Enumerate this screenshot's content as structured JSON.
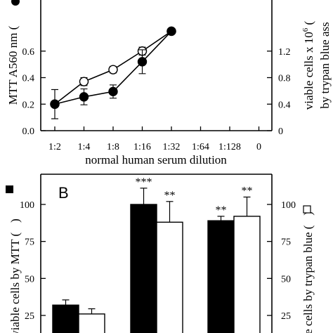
{
  "chart_data": [
    {
      "type": "line",
      "panel_label": "",
      "x_categories": [
        "1:2",
        "1:4",
        "1:8",
        "1:16",
        "1:32",
        "1:64",
        "1:128",
        "0"
      ],
      "xlabel": "normal human serum dilution",
      "ylabel_left": "MTT A560 nm (",
      "ylabel_right_line1": "viable cells x 10",
      "ylabel_right_sup": "6",
      "ylabel_right_paren": " (",
      "ylabel_right_line2": "by trypan blue ass",
      "y_left_ticks": [
        "0.0",
        "0.2",
        "0.4",
        "0.6"
      ],
      "y_right_ticks": [
        "0",
        "0.4",
        "0.8",
        "1.2"
      ],
      "ylim_left": [
        0,
        0.8
      ],
      "ylim_right": [
        0,
        1.6
      ],
      "series": [
        {
          "marker": "open-circle",
          "axis": "right",
          "values": [
            0.4,
            0.74,
            0.92,
            1.2,
            1.5
          ],
          "errors": [
            0.22,
            0.06,
            0.05,
            0.06,
            0.04
          ]
        },
        {
          "marker": "filled-circle",
          "axis": "left",
          "values": [
            0.2,
            0.255,
            0.295,
            0.52,
            0.75
          ],
          "errors": [
            0.11,
            0.06,
            0.05,
            0.09,
            0.02
          ]
        }
      ]
    },
    {
      "type": "bar",
      "panel_label": "B",
      "ylabel_left": "viable cells by MTT (",
      "ylabel_left_close": ")",
      "ylabel_right": "ble cells by trypan blue (",
      "ylabel_right_close": ")",
      "y_ticks": [
        "25",
        "50",
        "75",
        "100"
      ],
      "ylim": [
        15,
        122
      ],
      "groups": [
        {
          "black": 32,
          "black_err": 3.5,
          "white": 26,
          "white_err": 3.5,
          "black_sig": "",
          "white_sig": ""
        },
        {
          "black": 100,
          "black_err": 11,
          "white": 88,
          "white_err": 14,
          "black_sig": "***",
          "white_sig": "**"
        },
        {
          "black": 89,
          "black_err": 3,
          "white": 92,
          "white_err": 13,
          "black_sig": "**",
          "white_sig": "**"
        }
      ]
    }
  ]
}
